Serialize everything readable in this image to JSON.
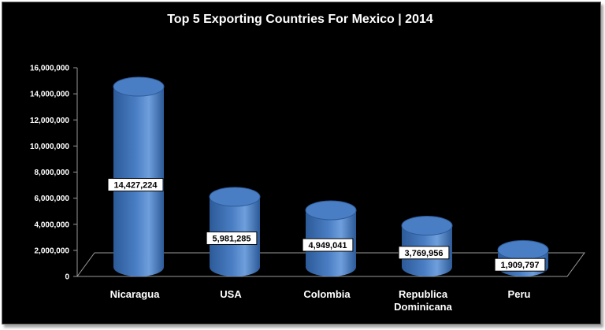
{
  "chart_data": {
    "type": "bar",
    "title": "Top 5 Exporting Countries  For Mexico | 2014",
    "xlabel": "",
    "ylabel": "",
    "categories": [
      "Nicaragua",
      "USA",
      "Colombia",
      "Republica Dominicana",
      "Peru"
    ],
    "category_lines": [
      [
        "Nicaragua"
      ],
      [
        "USA"
      ],
      [
        "Colombia"
      ],
      [
        "Republica",
        "Dominicana"
      ],
      [
        "Peru"
      ]
    ],
    "values": [
      14427224,
      5981285,
      4949041,
      3769956,
      1909797
    ],
    "value_labels": [
      "14,427,224",
      "5,981,285",
      "4,949,041",
      "3,769,956",
      "1,909,797"
    ],
    "ylim": [
      0,
      16000000
    ],
    "yticks": [
      0,
      2000000,
      4000000,
      6000000,
      8000000,
      10000000,
      12000000,
      14000000,
      16000000
    ],
    "ytick_labels": [
      "0",
      "2,000,000",
      "4,000,000",
      "6,000,000",
      "8,000,000",
      "10,000,000",
      "12,000,000",
      "14,000,000",
      "16,000,000"
    ],
    "grid": false,
    "legend": "none",
    "style": "3d-cylinder",
    "colors": {
      "bar": "#4a7ec4",
      "bar_dark": "#2c5a98",
      "bar_light": "#6f9fdc",
      "background": "#000000",
      "text": "#ffffff"
    }
  }
}
